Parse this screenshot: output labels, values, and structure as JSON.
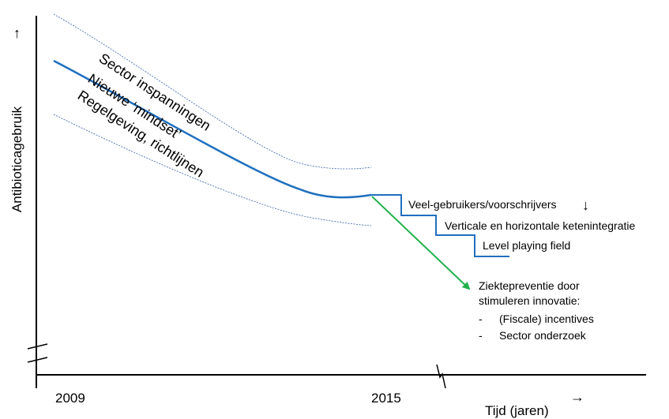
{
  "y_axis": {
    "label": "Antibioticagebruik",
    "arrow": "↑"
  },
  "x_axis": {
    "label": "Tijd (jaren)",
    "arrow": "→",
    "ticks": [
      "2009",
      "2015"
    ]
  },
  "curve_labels": [
    "Sector inspanningen",
    "Nieuwe ‘mindset’",
    "Regelgeving, richtlijnen"
  ],
  "step_labels": [
    "Veel-gebruikers/voorschrijvers",
    "Verticale en horizontale ketenintegratie",
    "Level playing field"
  ],
  "step_arrow": "↓",
  "prevention": {
    "title_line1": "Ziektepreventie door",
    "title_line2": "stimuleren innovatie:",
    "items": [
      {
        "bullet": "-",
        "text": "(Fiscale) incentives"
      },
      {
        "bullet": "-",
        "text": "Sector onderzoek"
      }
    ]
  },
  "colors": {
    "main_curve": "#1f6fbf",
    "band_lines": "#3a5fa8",
    "steps": "#1f6fbf",
    "arrow_green": "#22b14c",
    "axes": "#000000"
  }
}
